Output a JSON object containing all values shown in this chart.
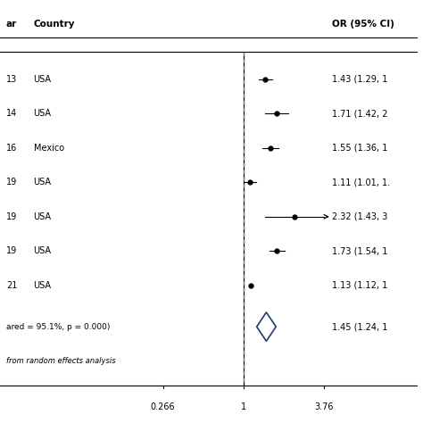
{
  "years": [
    "13",
    "14",
    "16",
    "19",
    "19",
    "19",
    "21"
  ],
  "countries": [
    "USA",
    "USA",
    "Mexico",
    "USA",
    "USA",
    "USA",
    "USA"
  ],
  "or_values": [
    1.43,
    1.71,
    1.55,
    1.11,
    2.32,
    1.73,
    1.13
  ],
  "ci_lower": [
    1.29,
    1.42,
    1.36,
    1.01,
    1.43,
    1.54,
    1.12
  ],
  "ci_upper": [
    1.59,
    2.07,
    1.77,
    1.22,
    3.76,
    1.95,
    1.14
  ],
  "arrow_row": 4,
  "or_labels": [
    "1.43 (1.29, 1",
    "1.71 (1.42, 2",
    "1.55 (1.36, 1",
    "1.11 (1.01, 1.",
    "2.32 (1.43, 3",
    "1.73 (1.54, 1",
    "1.13 (1.12, 1"
  ],
  "pooled_or": 1.45,
  "pooled_ci_lower": 1.24,
  "pooled_ci_upper": 1.7,
  "pooled_label": "1.45 (1.24, 1",
  "heterogeneity_label": "ared = 95.1%, p = 0.000)",
  "footnote": "from random effects analysis",
  "header_year": "ar",
  "header_country": "Country",
  "header_or": "OR (95% CI)",
  "x_tick_vals": [
    0.266,
    1,
    3.76
  ],
  "x_tick_labels": [
    "0.266",
    "1",
    "3.76"
  ],
  "diamond_color": "#1f3a6e",
  "bg_color": "#ffffff"
}
